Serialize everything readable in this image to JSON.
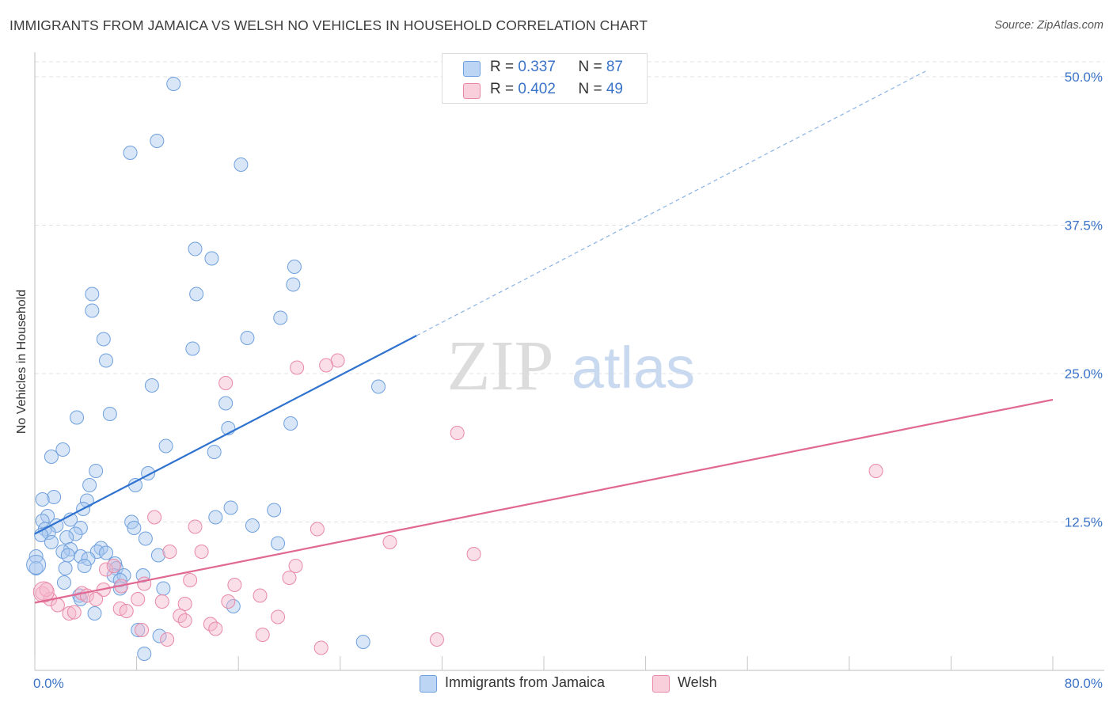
{
  "title": "IMMIGRANTS FROM JAMAICA VS WELSH NO VEHICLES IN HOUSEHOLD CORRELATION CHART",
  "source": "Source: ZipAtlas.com",
  "watermark": {
    "zip": "ZIP",
    "atlas": "atlas"
  },
  "legend_top": {
    "rows": [
      {
        "r_label": "R = ",
        "r_value": "0.337",
        "n_label": "N = ",
        "n_value": "87",
        "color": "#a8c8f0"
      },
      {
        "r_label": "R = ",
        "r_value": "0.402",
        "n_label": "N = ",
        "n_value": "49",
        "color": "#f5b8cc"
      }
    ]
  },
  "legend_bottom": [
    {
      "label": "Immigrants from Jamaica",
      "color": "#a8c8f0"
    },
    {
      "label": "Welsh",
      "color": "#f5b8cc"
    }
  ],
  "chart_data": {
    "type": "scatter",
    "title": "IMMIGRANTS FROM JAMAICA VS WELSH NO VEHICLES IN HOUSEHOLD CORRELATION CHART",
    "xlabel": "",
    "ylabel": "No Vehicles in Household",
    "xlim": [
      0,
      80
    ],
    "ylim": [
      0,
      50
    ],
    "x_tick_labels": [
      "0.0%",
      "80.0%"
    ],
    "y_ticks": [
      12.5,
      25.0,
      37.5,
      50.0
    ],
    "y_tick_labels": [
      "12.5%",
      "25.0%",
      "37.5%",
      "50.0%"
    ],
    "grid": true,
    "legend_position": "top-center",
    "series": [
      {
        "name": "Immigrants from Jamaica",
        "color": "#6fa0dd",
        "fill": "#a8c8f0",
        "r": 0.337,
        "n": 87,
        "trend": {
          "x0": 0,
          "y0": 11.5,
          "x1": 30,
          "y1": 28.2,
          "dash_to_x": 80
        },
        "points": [
          [
            10.9,
            49.4
          ],
          [
            9.6,
            44.6
          ],
          [
            7.5,
            43.6
          ],
          [
            16.2,
            42.6
          ],
          [
            12.6,
            35.5
          ],
          [
            13.9,
            34.7
          ],
          [
            20.4,
            34.0
          ],
          [
            20.3,
            32.5
          ],
          [
            4.5,
            31.7
          ],
          [
            12.7,
            31.7
          ],
          [
            4.5,
            30.3
          ],
          [
            19.3,
            29.7
          ],
          [
            5.4,
            27.9
          ],
          [
            16.7,
            28.0
          ],
          [
            12.4,
            27.1
          ],
          [
            5.6,
            26.1
          ],
          [
            27.0,
            23.9
          ],
          [
            9.2,
            24.0
          ],
          [
            15.0,
            22.5
          ],
          [
            5.9,
            21.6
          ],
          [
            3.3,
            21.3
          ],
          [
            20.1,
            20.8
          ],
          [
            15.2,
            20.4
          ],
          [
            10.3,
            18.9
          ],
          [
            2.2,
            18.6
          ],
          [
            14.1,
            18.4
          ],
          [
            1.3,
            18.0
          ],
          [
            4.8,
            16.8
          ],
          [
            8.9,
            16.6
          ],
          [
            4.3,
            15.6
          ],
          [
            7.9,
            15.6
          ],
          [
            1.5,
            14.6
          ],
          [
            0.6,
            14.4
          ],
          [
            4.1,
            14.3
          ],
          [
            3.8,
            13.6
          ],
          [
            15.4,
            13.7
          ],
          [
            18.8,
            13.5
          ],
          [
            1.0,
            13.0
          ],
          [
            14.2,
            12.9
          ],
          [
            2.8,
            12.7
          ],
          [
            0.6,
            12.6
          ],
          [
            7.6,
            12.5
          ],
          [
            17.1,
            12.2
          ],
          [
            1.7,
            12.2
          ],
          [
            3.6,
            12.0
          ],
          [
            0.8,
            11.9
          ],
          [
            7.8,
            12.0
          ],
          [
            1.1,
            11.6
          ],
          [
            3.2,
            11.5
          ],
          [
            0.5,
            11.4
          ],
          [
            8.7,
            11.1
          ],
          [
            2.5,
            11.2
          ],
          [
            19.1,
            10.7
          ],
          [
            1.3,
            10.8
          ],
          [
            5.2,
            10.3
          ],
          [
            2.8,
            10.2
          ],
          [
            4.9,
            10.0
          ],
          [
            2.2,
            10.0
          ],
          [
            5.6,
            9.9
          ],
          [
            9.7,
            9.7
          ],
          [
            3.6,
            9.6
          ],
          [
            0.1,
            9.6
          ],
          [
            4.2,
            9.4
          ],
          [
            2.6,
            9.7
          ],
          [
            6.3,
            9.0
          ],
          [
            3.9,
            8.8
          ],
          [
            6.4,
            8.6
          ],
          [
            2.4,
            8.6
          ],
          [
            0.1,
            8.6
          ],
          [
            8.5,
            8.0
          ],
          [
            6.2,
            8.0
          ],
          [
            7.0,
            8.0
          ],
          [
            6.7,
            7.6
          ],
          [
            2.3,
            7.4
          ],
          [
            10.1,
            6.9
          ],
          [
            3.5,
            6.3
          ],
          [
            6.7,
            6.9
          ],
          [
            3.6,
            6.0
          ],
          [
            15.6,
            5.4
          ],
          [
            4.7,
            4.8
          ],
          [
            8.1,
            3.4
          ],
          [
            9.8,
            2.9
          ],
          [
            25.8,
            2.4
          ],
          [
            8.6,
            1.4
          ]
        ]
      },
      {
        "name": "Welsh",
        "color": "#e889a7",
        "fill": "#f5b8cc",
        "r": 0.402,
        "n": 49,
        "trend": {
          "x0": 0,
          "y0": 5.7,
          "x1": 80,
          "y1": 22.8
        },
        "points": [
          [
            23.8,
            26.1
          ],
          [
            20.6,
            25.5
          ],
          [
            22.9,
            25.7
          ],
          [
            15.0,
            24.2
          ],
          [
            33.2,
            20.0
          ],
          [
            66.1,
            16.8
          ],
          [
            9.4,
            12.9
          ],
          [
            12.6,
            12.1
          ],
          [
            22.2,
            11.9
          ],
          [
            27.9,
            10.8
          ],
          [
            34.5,
            9.8
          ],
          [
            10.6,
            10.0
          ],
          [
            13.1,
            10.0
          ],
          [
            20.5,
            8.8
          ],
          [
            5.6,
            8.5
          ],
          [
            8.6,
            7.3
          ],
          [
            12.2,
            7.6
          ],
          [
            15.7,
            7.2
          ],
          [
            20.0,
            7.8
          ],
          [
            6.8,
            7.1
          ],
          [
            5.4,
            6.8
          ],
          [
            3.7,
            6.5
          ],
          [
            4.1,
            6.3
          ],
          [
            0.6,
            6.5
          ],
          [
            1.2,
            6.0
          ],
          [
            4.8,
            6.0
          ],
          [
            8.1,
            6.0
          ],
          [
            10.0,
            5.8
          ],
          [
            11.8,
            5.6
          ],
          [
            15.2,
            5.8
          ],
          [
            17.7,
            6.3
          ],
          [
            1.8,
            5.5
          ],
          [
            6.7,
            5.2
          ],
          [
            7.2,
            5.0
          ],
          [
            2.7,
            4.8
          ],
          [
            11.4,
            4.6
          ],
          [
            19.1,
            4.5
          ],
          [
            11.8,
            4.2
          ],
          [
            13.8,
            3.9
          ],
          [
            14.2,
            3.5
          ],
          [
            8.4,
            3.4
          ],
          [
            17.9,
            3.0
          ],
          [
            10.4,
            2.6
          ],
          [
            31.6,
            2.6
          ],
          [
            22.5,
            1.9
          ],
          [
            0.9,
            6.8
          ],
          [
            3.1,
            4.9
          ],
          [
            6.2,
            8.8
          ]
        ]
      }
    ]
  }
}
